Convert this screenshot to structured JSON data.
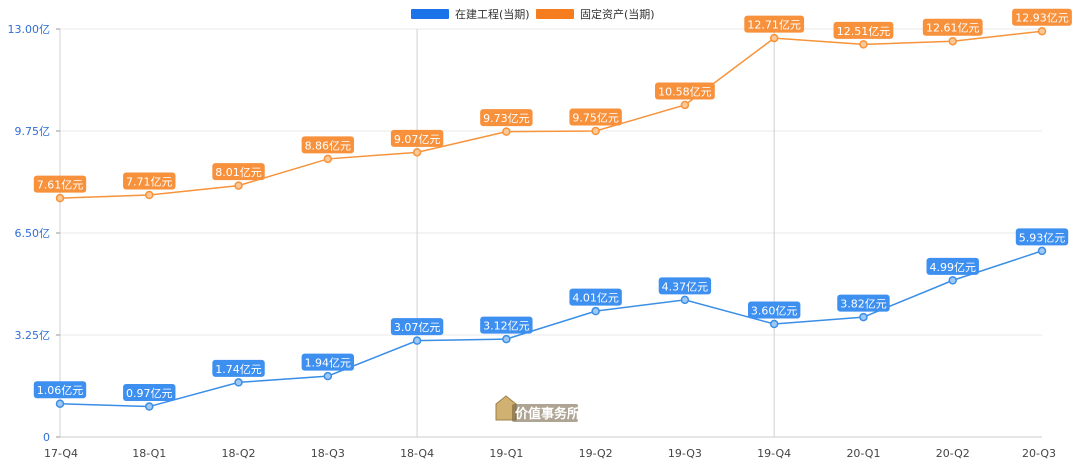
{
  "chart_data": {
    "type": "line",
    "categories": [
      "17-Q4",
      "18-Q1",
      "18-Q2",
      "18-Q3",
      "18-Q4",
      "19-Q1",
      "19-Q2",
      "19-Q3",
      "19-Q4",
      "20-Q1",
      "20-Q2",
      "20-Q3"
    ],
    "series": [
      {
        "name": "在建工程(当期)",
        "color": "#3a8ee6",
        "values": [
          1.06,
          0.97,
          1.74,
          1.94,
          3.07,
          3.12,
          4.01,
          4.37,
          3.6,
          3.82,
          4.99,
          5.93
        ],
        "labels": [
          "1.06亿元",
          "0.97亿元",
          "1.74亿元",
          "1.94亿元",
          "3.07亿元",
          "3.12亿元",
          "4.01亿元",
          "4.37亿元",
          "3.60亿元",
          "3.82亿元",
          "4.99亿元",
          "5.93亿元"
        ]
      },
      {
        "name": "固定资产(当期)",
        "color": "#f7933a",
        "values": [
          7.61,
          7.71,
          8.01,
          8.86,
          9.07,
          9.73,
          9.75,
          10.58,
          12.71,
          12.51,
          12.61,
          12.93
        ],
        "labels": [
          "7.61亿元",
          "7.71亿元",
          "8.01亿元",
          "8.86亿元",
          "9.07亿元",
          "9.73亿元",
          "9.75亿元",
          "10.58亿元",
          "12.71亿元",
          "12.51亿元",
          "12.61亿元",
          "12.93亿元"
        ]
      }
    ],
    "yticks": [
      {
        "value": 0,
        "label": "0"
      },
      {
        "value": 3.25,
        "label": "3.25亿"
      },
      {
        "value": 6.5,
        "label": "6.50亿"
      },
      {
        "value": 9.75,
        "label": "9.75亿"
      },
      {
        "value": 13,
        "label": "13.00亿"
      }
    ],
    "ylim": [
      0,
      13
    ],
    "vertical_gridlines_at": [
      "17-Q4",
      "18-Q4",
      "19-Q4"
    ],
    "grid": true,
    "legend_position": "top-center",
    "watermark": "价值事务所"
  }
}
